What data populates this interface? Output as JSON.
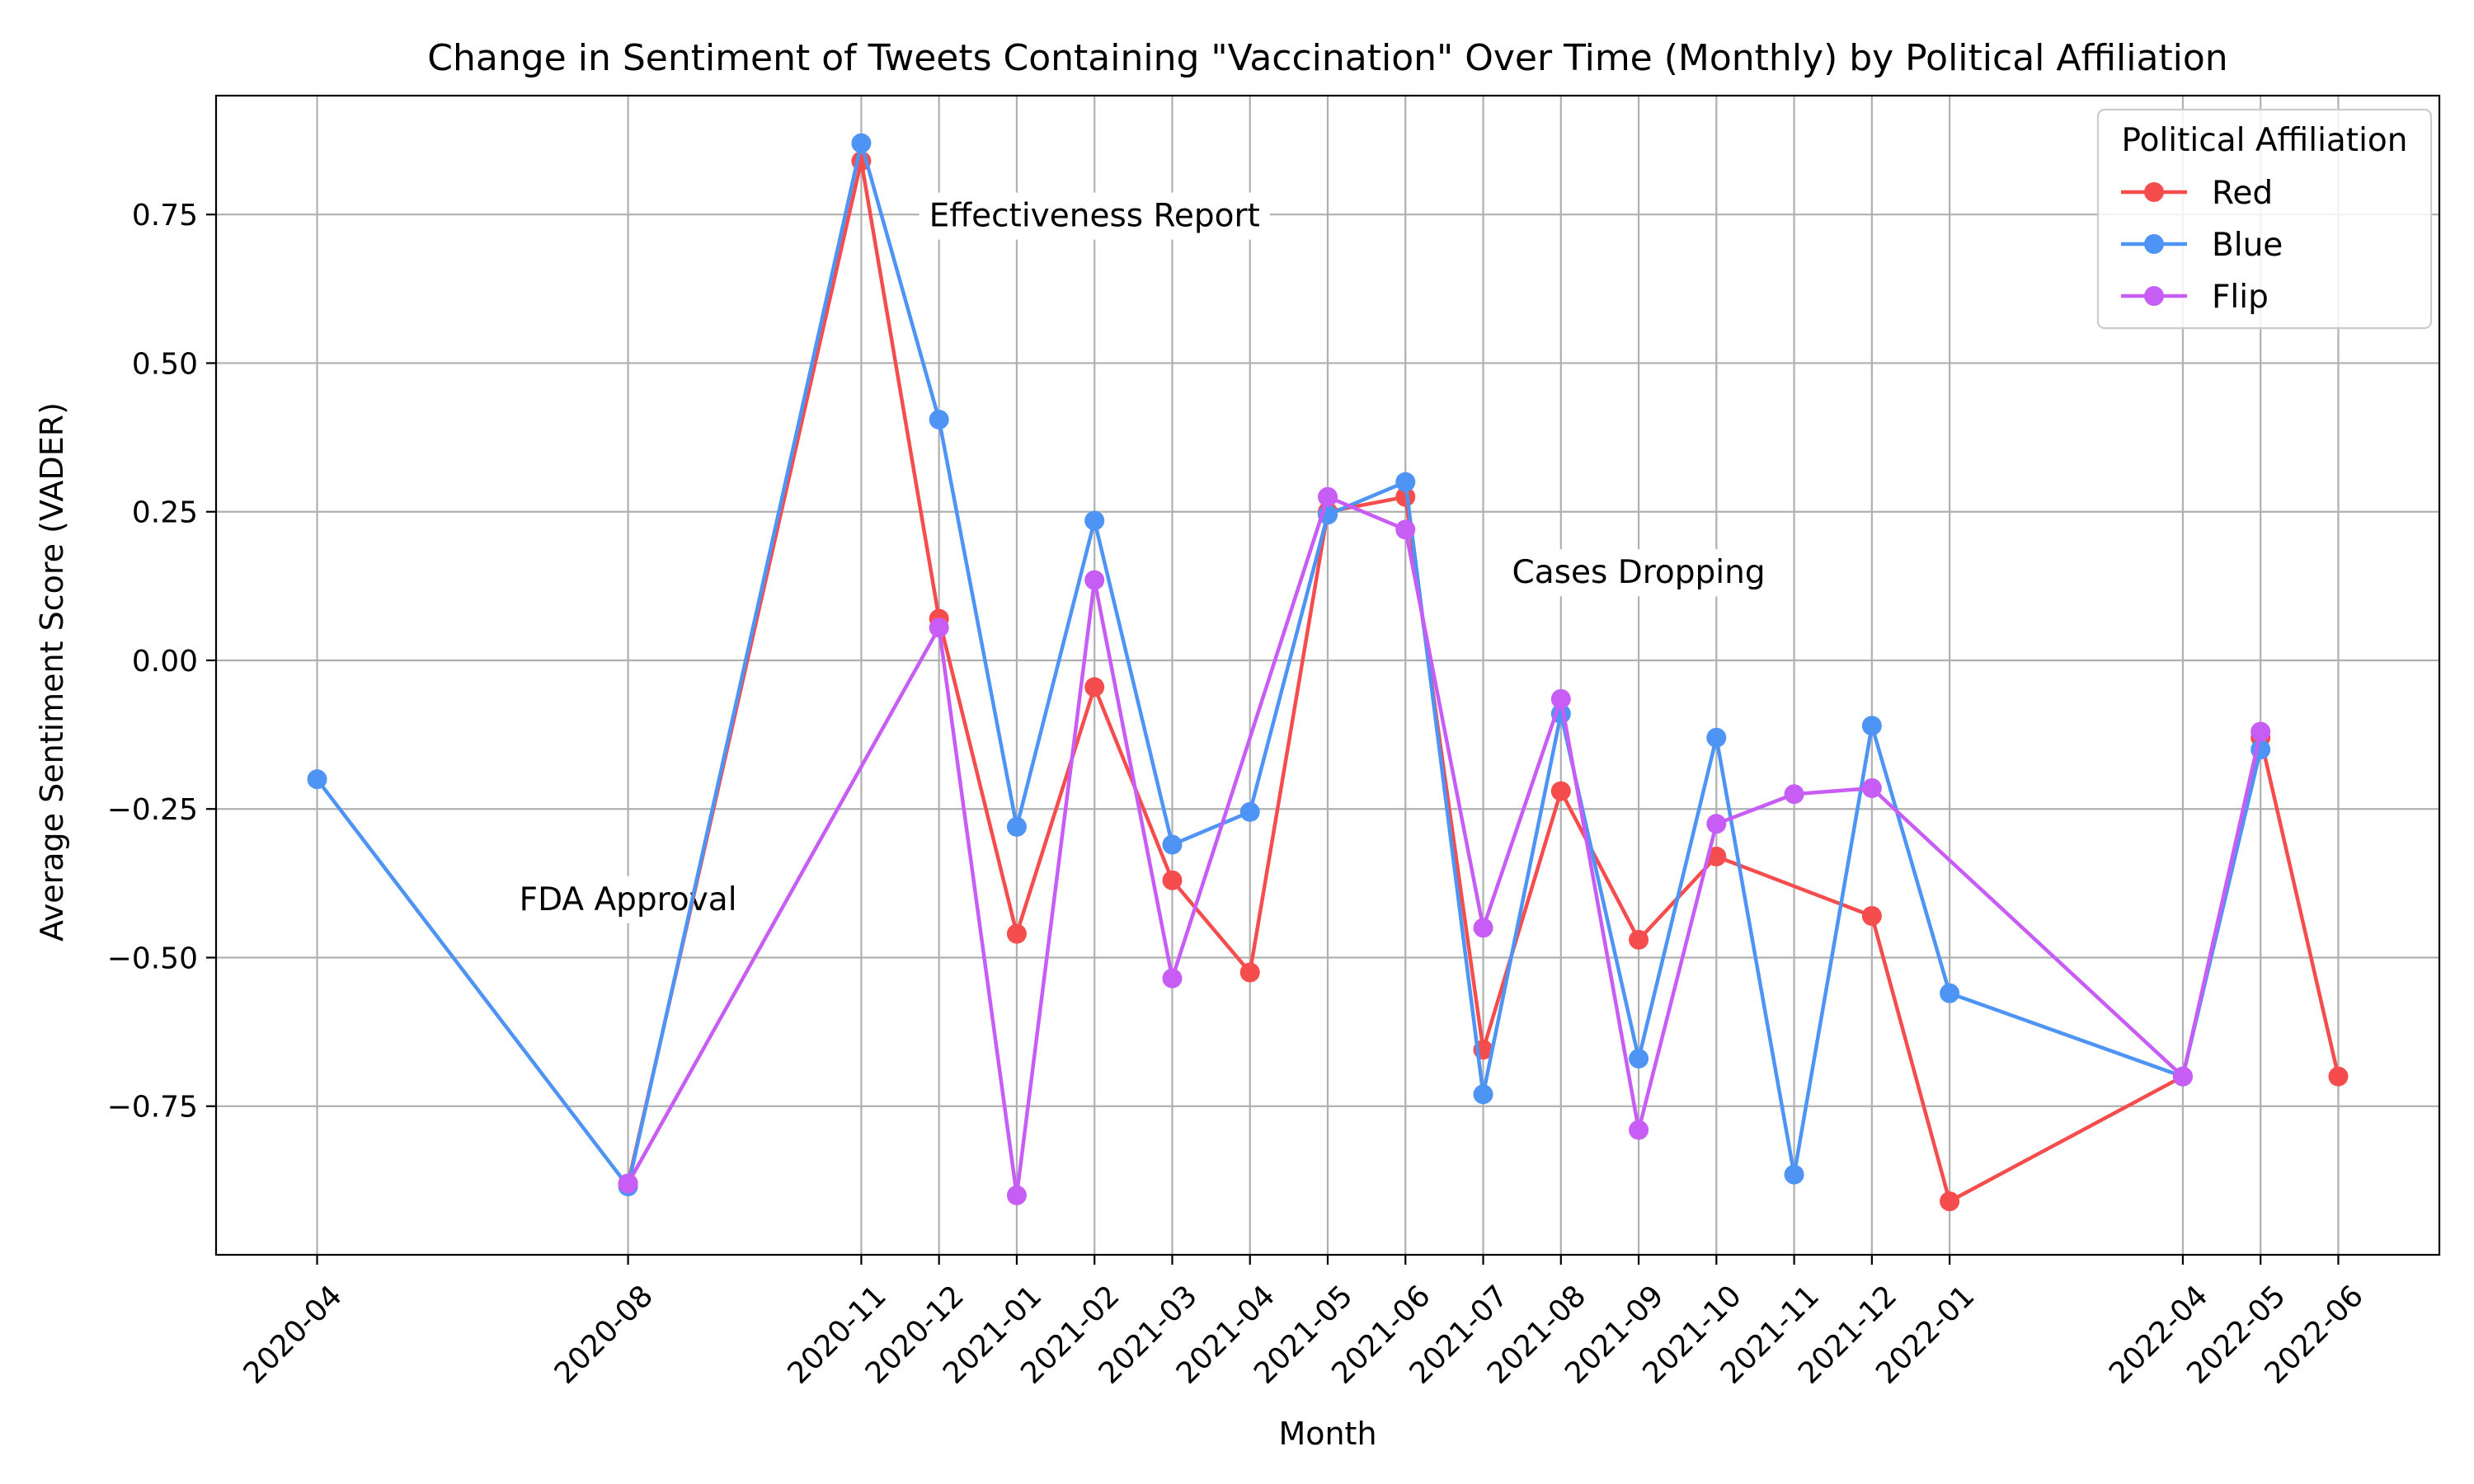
{
  "chart_data": {
    "type": "line",
    "title": "Change in Sentiment of Tweets Containing \"Vaccination\" Over Time (Monthly) by Political Affiliation",
    "xlabel": "Month",
    "ylabel": "Average Sentiment Score (VADER)",
    "ylim": [
      -1.0,
      0.95
    ],
    "yticks": [
      -0.75,
      -0.5,
      -0.25,
      0.0,
      0.25,
      0.5,
      0.75
    ],
    "ytick_labels": [
      "−0.75",
      "−0.50",
      "−0.25",
      "0.00",
      "0.25",
      "0.50",
      "0.75"
    ],
    "xticks": [
      "2020-04",
      "2020-08",
      "2020-11",
      "2020-12",
      "2021-01",
      "2021-02",
      "2021-03",
      "2021-04",
      "2021-05",
      "2021-06",
      "2021-07",
      "2021-08",
      "2021-09",
      "2021-10",
      "2021-11",
      "2021-12",
      "2022-01",
      "2022-04",
      "2022-05",
      "2022-06"
    ],
    "grid": true,
    "legend": {
      "title": "Political Affiliation",
      "placement": "top-right"
    },
    "series": [
      {
        "name": "Red",
        "color": "#f54d4d",
        "points": [
          [
            "2020-08",
            -0.88
          ],
          [
            "2020-11",
            0.84
          ],
          [
            "2020-12",
            0.07
          ],
          [
            "2021-01",
            -0.46
          ],
          [
            "2021-02",
            -0.045
          ],
          [
            "2021-03",
            -0.37
          ],
          [
            "2021-04",
            -0.525
          ],
          [
            "2021-05",
            0.25
          ],
          [
            "2021-06",
            0.275
          ],
          [
            "2021-07",
            -0.655
          ],
          [
            "2021-08",
            -0.22
          ],
          [
            "2021-09",
            -0.47
          ],
          [
            "2021-10",
            -0.33
          ],
          [
            "2021-12",
            -0.43
          ],
          [
            "2022-01",
            -0.91
          ],
          [
            "2022-04",
            -0.7
          ],
          [
            "2022-05",
            -0.13
          ],
          [
            "2022-06",
            -0.7
          ]
        ]
      },
      {
        "name": "Blue",
        "color": "#4d94f5",
        "points": [
          [
            "2020-04",
            -0.2
          ],
          [
            "2020-08",
            -0.885
          ],
          [
            "2020-11",
            0.87
          ],
          [
            "2020-12",
            0.405
          ],
          [
            "2021-01",
            -0.28
          ],
          [
            "2021-02",
            0.235
          ],
          [
            "2021-03",
            -0.31
          ],
          [
            "2021-04",
            -0.255
          ],
          [
            "2021-05",
            0.245
          ],
          [
            "2021-06",
            0.3
          ],
          [
            "2021-07",
            -0.73
          ],
          [
            "2021-08",
            -0.09
          ],
          [
            "2021-09",
            -0.67
          ],
          [
            "2021-10",
            -0.13
          ],
          [
            "2021-11",
            -0.865
          ],
          [
            "2021-12",
            -0.11
          ],
          [
            "2022-01",
            -0.56
          ],
          [
            "2022-04",
            -0.7
          ],
          [
            "2022-05",
            -0.15
          ]
        ]
      },
      {
        "name": "Flip",
        "color": "#c75df5",
        "points": [
          [
            "2020-08",
            -0.88
          ],
          [
            "2020-12",
            0.055
          ],
          [
            "2021-01",
            -0.9
          ],
          [
            "2021-02",
            0.135
          ],
          [
            "2021-03",
            -0.535
          ],
          [
            "2021-05",
            0.275
          ],
          [
            "2021-06",
            0.22
          ],
          [
            "2021-07",
            -0.45
          ],
          [
            "2021-08",
            -0.065
          ],
          [
            "2021-09",
            -0.79
          ],
          [
            "2021-10",
            -0.275
          ],
          [
            "2021-11",
            -0.225
          ],
          [
            "2021-12",
            -0.215
          ],
          [
            "2022-04",
            -0.7
          ],
          [
            "2022-05",
            -0.12
          ]
        ]
      }
    ],
    "annotations": [
      {
        "text": "FDA Approval",
        "x": "2020-08",
        "y": -0.42
      },
      {
        "text": "Effectiveness Report",
        "x": "2021-02",
        "y": 0.73
      },
      {
        "text": "Cases Dropping",
        "x": "2021-09",
        "y": 0.13
      }
    ]
  }
}
